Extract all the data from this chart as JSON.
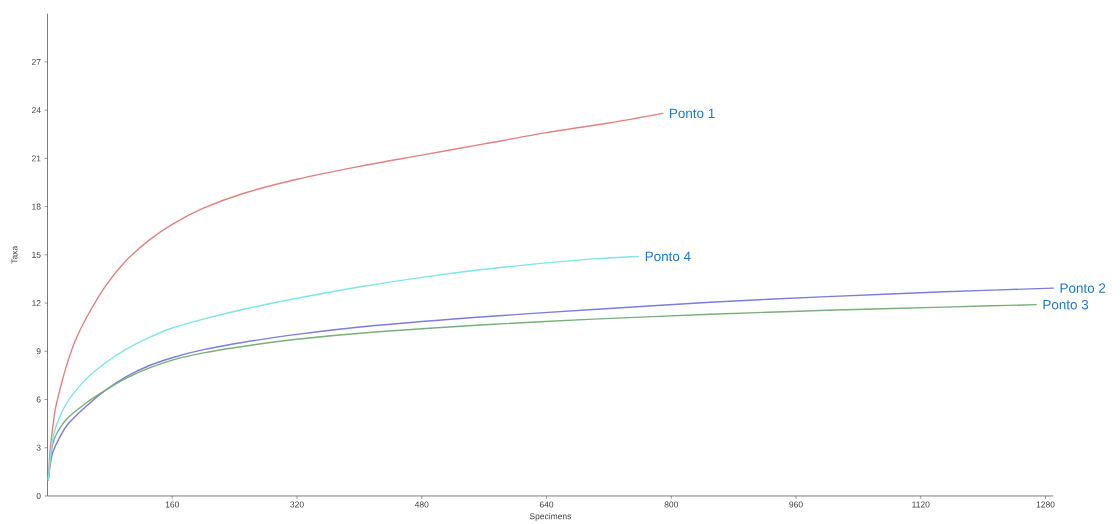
{
  "chart_data": {
    "type": "line",
    "xlabel": "Specimens",
    "ylabel": "Taxa",
    "xlim": [
      0,
      1290
    ],
    "ylim": [
      0,
      30
    ],
    "xticks": [
      160,
      320,
      480,
      640,
      800,
      960,
      1120,
      1280
    ],
    "yticks": [
      0,
      3,
      6,
      9,
      12,
      15,
      18,
      21,
      24,
      27
    ],
    "series": [
      {
        "name": "Ponto 1",
        "color": "#e08280",
        "x": [
          1,
          3,
          5,
          10,
          18,
          25,
          35,
          50,
          75,
          100,
          130,
          160,
          200,
          250,
          320,
          400,
          480,
          560,
          640,
          720,
          789
        ],
        "values": [
          1,
          2.6,
          3.6,
          5.4,
          7.0,
          8.2,
          9.6,
          11.1,
          13.1,
          14.6,
          15.9,
          16.9,
          17.9,
          18.8,
          19.7,
          20.5,
          21.2,
          21.9,
          22.6,
          23.2,
          23.8
        ]
      },
      {
        "name": "Ponto 2",
        "color": "#7d7ddc",
        "x": [
          1,
          5,
          10,
          25,
          50,
          75,
          100,
          130,
          160,
          200,
          250,
          320,
          420,
          560,
          700,
          850,
          1000,
          1150,
          1290
        ],
        "values": [
          1,
          2.4,
          3.1,
          4.4,
          5.6,
          6.6,
          7.4,
          8.1,
          8.6,
          9.1,
          9.55,
          10.05,
          10.6,
          11.15,
          11.6,
          12.05,
          12.4,
          12.7,
          12.93
        ]
      },
      {
        "name": "Ponto 3",
        "color": "#7aae7a",
        "x": [
          1,
          5,
          10,
          25,
          50,
          75,
          100,
          130,
          160,
          200,
          250,
          320,
          420,
          560,
          700,
          850,
          1000,
          1150,
          1268
        ],
        "values": [
          1,
          2.8,
          3.7,
          4.8,
          5.8,
          6.6,
          7.3,
          7.95,
          8.45,
          8.9,
          9.3,
          9.75,
          10.2,
          10.65,
          11.0,
          11.3,
          11.55,
          11.75,
          11.9
        ]
      },
      {
        "name": "Ponto 4",
        "color": "#7ee6e6",
        "x": [
          1,
          5,
          10,
          25,
          50,
          75,
          100,
          130,
          160,
          200,
          250,
          320,
          400,
          480,
          560,
          640,
          700,
          758
        ],
        "values": [
          1,
          3.0,
          4.2,
          5.8,
          7.3,
          8.3,
          9.1,
          9.85,
          10.45,
          11.0,
          11.6,
          12.3,
          13.0,
          13.6,
          14.1,
          14.5,
          14.75,
          14.9
        ]
      }
    ]
  }
}
